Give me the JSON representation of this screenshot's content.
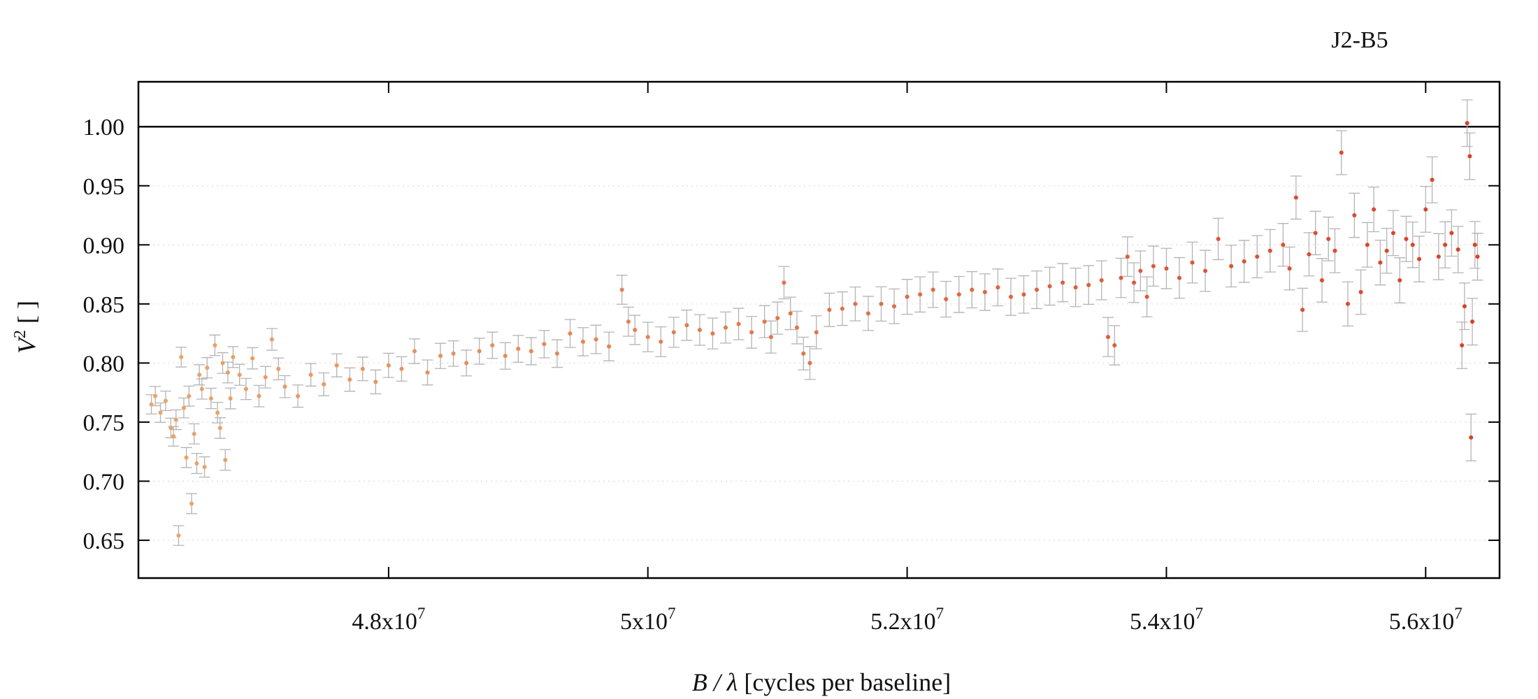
{
  "chart_data": {
    "type": "scatter",
    "title": "J2-B5",
    "xlabel": "B / λ [cycles per baseline]",
    "xlabel_parts": {
      "var": "B / λ",
      "rest": " [cycles per baseline]"
    },
    "ylabel": "V² [ ]",
    "ylabel_parts": {
      "var": "V",
      "sup": "2",
      "rest": " [ ]"
    },
    "xlim": [
      46070000,
      56570000
    ],
    "ylim": [
      0.618,
      1.038
    ],
    "reference_line_y": 1.0,
    "grid": "horizontal-dotted",
    "error_bars": true,
    "x_ticks": [
      48000000,
      50000000,
      52000000,
      54000000,
      56000000
    ],
    "x_tick_labels": [
      {
        "base": "4.8x10",
        "exp": "7"
      },
      {
        "base": "5x10",
        "exp": "7"
      },
      {
        "base": "5.2x10",
        "exp": "7"
      },
      {
        "base": "5.4x10",
        "exp": "7"
      },
      {
        "base": "5.6x10",
        "exp": "7"
      }
    ],
    "y_ticks": [
      0.65,
      0.7,
      0.75,
      0.8,
      0.85,
      0.9,
      0.95,
      1.0
    ],
    "y_tick_labels": [
      "0.65",
      "0.70",
      "0.75",
      "0.80",
      "0.85",
      "0.90",
      "0.95",
      "1.00"
    ],
    "colors": {
      "axis": "#000000",
      "errorbar": "#b4b4b4",
      "point_start": "#f4a460",
      "point_end": "#e8381c",
      "grid": "#dddddd"
    },
    "series": [
      {
        "points": [
          [
            46170000,
            0.765
          ],
          [
            46200000,
            0.772
          ],
          [
            46240000,
            0.758
          ],
          [
            46280000,
            0.768
          ],
          [
            46320000,
            0.745
          ],
          [
            46340000,
            0.738
          ],
          [
            46360000,
            0.752
          ],
          [
            46380000,
            0.654
          ],
          [
            46400000,
            0.805
          ],
          [
            46420000,
            0.762
          ],
          [
            46440000,
            0.72
          ],
          [
            46460000,
            0.772
          ],
          [
            46480000,
            0.681
          ],
          [
            46500000,
            0.74
          ],
          [
            46520000,
            0.715
          ],
          [
            46540000,
            0.79
          ],
          [
            46560000,
            0.778
          ],
          [
            46580000,
            0.712
          ],
          [
            46600000,
            0.796
          ],
          [
            46630000,
            0.77
          ],
          [
            46660000,
            0.815
          ],
          [
            46680000,
            0.758
          ],
          [
            46700000,
            0.745
          ],
          [
            46720000,
            0.8
          ],
          [
            46740000,
            0.718
          ],
          [
            46760000,
            0.792
          ],
          [
            46780000,
            0.77
          ],
          [
            46800000,
            0.805
          ],
          [
            46850000,
            0.79
          ],
          [
            46900000,
            0.778
          ],
          [
            46950000,
            0.804
          ],
          [
            47000000,
            0.772
          ],
          [
            47050000,
            0.788
          ],
          [
            47100000,
            0.82
          ],
          [
            47150000,
            0.795
          ],
          [
            47200000,
            0.78
          ],
          [
            47300000,
            0.772
          ],
          [
            47400000,
            0.79
          ],
          [
            47500000,
            0.782
          ],
          [
            47600000,
            0.798
          ],
          [
            47700000,
            0.786
          ],
          [
            47800000,
            0.795
          ],
          [
            47900000,
            0.784
          ],
          [
            48000000,
            0.798
          ],
          [
            48100000,
            0.795
          ],
          [
            48200000,
            0.81
          ],
          [
            48300000,
            0.792
          ],
          [
            48400000,
            0.806
          ],
          [
            48500000,
            0.808
          ],
          [
            48600000,
            0.8
          ],
          [
            48700000,
            0.81
          ],
          [
            48800000,
            0.815
          ],
          [
            48900000,
            0.806
          ],
          [
            49000000,
            0.812
          ],
          [
            49100000,
            0.81
          ],
          [
            49200000,
            0.816
          ],
          [
            49300000,
            0.808
          ],
          [
            49400000,
            0.825
          ],
          [
            49500000,
            0.818
          ],
          [
            49600000,
            0.82
          ],
          [
            49700000,
            0.814
          ],
          [
            49800000,
            0.862
          ],
          [
            49850000,
            0.835
          ],
          [
            49900000,
            0.828
          ],
          [
            50000000,
            0.822
          ],
          [
            50100000,
            0.818
          ],
          [
            50200000,
            0.826
          ],
          [
            50300000,
            0.832
          ],
          [
            50400000,
            0.828
          ],
          [
            50500000,
            0.825
          ],
          [
            50600000,
            0.83
          ],
          [
            50700000,
            0.833
          ],
          [
            50800000,
            0.826
          ],
          [
            50900000,
            0.835
          ],
          [
            50950000,
            0.822
          ],
          [
            51000000,
            0.838
          ],
          [
            51050000,
            0.868
          ],
          [
            51100000,
            0.842
          ],
          [
            51150000,
            0.83
          ],
          [
            51200000,
            0.808
          ],
          [
            51250000,
            0.8
          ],
          [
            51300000,
            0.826
          ],
          [
            51400000,
            0.845
          ],
          [
            51500000,
            0.846
          ],
          [
            51600000,
            0.85
          ],
          [
            51700000,
            0.842
          ],
          [
            51800000,
            0.85
          ],
          [
            51900000,
            0.848
          ],
          [
            52000000,
            0.856
          ],
          [
            52100000,
            0.858
          ],
          [
            52200000,
            0.862
          ],
          [
            52300000,
            0.854
          ],
          [
            52400000,
            0.858
          ],
          [
            52500000,
            0.862
          ],
          [
            52600000,
            0.86
          ],
          [
            52700000,
            0.864
          ],
          [
            52800000,
            0.856
          ],
          [
            52900000,
            0.858
          ],
          [
            53000000,
            0.862
          ],
          [
            53100000,
            0.865
          ],
          [
            53200000,
            0.868
          ],
          [
            53300000,
            0.864
          ],
          [
            53400000,
            0.866
          ],
          [
            53500000,
            0.87
          ],
          [
            53550000,
            0.822
          ],
          [
            53600000,
            0.815
          ],
          [
            53650000,
            0.872
          ],
          [
            53700000,
            0.89
          ],
          [
            53750000,
            0.868
          ],
          [
            53800000,
            0.878
          ],
          [
            53850000,
            0.856
          ],
          [
            53900000,
            0.882
          ],
          [
            54000000,
            0.88
          ],
          [
            54100000,
            0.872
          ],
          [
            54200000,
            0.885
          ],
          [
            54300000,
            0.878
          ],
          [
            54400000,
            0.905
          ],
          [
            54500000,
            0.882
          ],
          [
            54600000,
            0.886
          ],
          [
            54700000,
            0.89
          ],
          [
            54800000,
            0.895
          ],
          [
            54900000,
            0.9
          ],
          [
            54950000,
            0.88
          ],
          [
            55000000,
            0.94
          ],
          [
            55050000,
            0.845
          ],
          [
            55100000,
            0.892
          ],
          [
            55150000,
            0.91
          ],
          [
            55200000,
            0.87
          ],
          [
            55250000,
            0.905
          ],
          [
            55300000,
            0.895
          ],
          [
            55350000,
            0.978
          ],
          [
            55400000,
            0.85
          ],
          [
            55450000,
            0.925
          ],
          [
            55500000,
            0.86
          ],
          [
            55550000,
            0.9
          ],
          [
            55600000,
            0.93
          ],
          [
            55650000,
            0.885
          ],
          [
            55700000,
            0.895
          ],
          [
            55750000,
            0.91
          ],
          [
            55800000,
            0.87
          ],
          [
            55850000,
            0.905
          ],
          [
            55900000,
            0.9
          ],
          [
            55950000,
            0.888
          ],
          [
            56000000,
            0.93
          ],
          [
            56050000,
            0.955
          ],
          [
            56100000,
            0.89
          ],
          [
            56150000,
            0.9
          ],
          [
            56200000,
            0.91
          ],
          [
            56250000,
            0.896
          ],
          [
            56280000,
            0.815
          ],
          [
            56300000,
            0.848
          ],
          [
            56320000,
            1.003
          ],
          [
            56340000,
            0.975
          ],
          [
            56350000,
            0.737
          ],
          [
            56360000,
            0.835
          ],
          [
            56380000,
            0.9
          ],
          [
            56400000,
            0.89
          ]
        ]
      }
    ]
  }
}
